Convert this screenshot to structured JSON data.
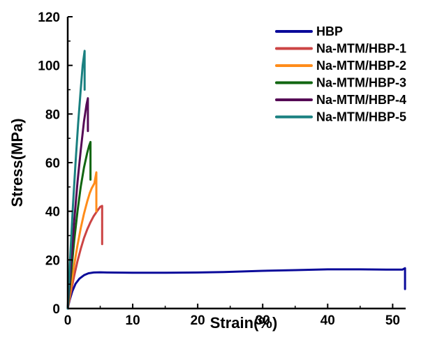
{
  "chart_data": {
    "type": "line",
    "xlabel": "Strain(%)",
    "ylabel": "Stress(MPa)",
    "xlim": [
      0,
      52
    ],
    "ylim": [
      0,
      120
    ],
    "x_ticks": [
      0,
      10,
      20,
      30,
      40,
      50
    ],
    "y_ticks": [
      0,
      20,
      40,
      60,
      80,
      100,
      120
    ],
    "grid": false,
    "legend_position": "top-right",
    "series": [
      {
        "name": "HBP",
        "color": "#0a0a9a",
        "x": [
          0,
          0.3,
          0.7,
          1.2,
          1.8,
          2.5,
          3.2,
          4.0,
          5.0,
          6.0,
          10,
          15,
          20,
          24,
          30,
          35,
          40,
          45,
          49,
          51.5,
          51.9,
          51.9,
          51.9
        ],
        "y": [
          0,
          3.5,
          7,
          10.2,
          12.3,
          13.7,
          14.5,
          14.8,
          14.9,
          14.8,
          14.7,
          14.7,
          14.8,
          15.0,
          15.5,
          15.8,
          16.1,
          16.1,
          16.0,
          16.0,
          16.6,
          13.5,
          8.0
        ]
      },
      {
        "name": "Na-MTM/HBP-1",
        "color": "#cc4444",
        "x": [
          0,
          0.5,
          1,
          1.5,
          2,
          2.5,
          3,
          3.5,
          4,
          4.5,
          5.0,
          5.3,
          5.3,
          5.3
        ],
        "y": [
          0,
          7,
          13.5,
          19.5,
          24.5,
          29,
          32.5,
          35.5,
          38,
          40,
          41.8,
          42.2,
          35,
          26.5
        ]
      },
      {
        "name": "Na-MTM/HBP-2",
        "color": "#ff8c1a",
        "x": [
          0,
          0.5,
          1,
          1.5,
          2,
          2.5,
          3,
          3.4,
          3.7,
          4.1,
          4.4,
          4.4,
          4.4
        ],
        "y": [
          0,
          9,
          18,
          26,
          33,
          39,
          44,
          47.5,
          49.5,
          51.5,
          56,
          48,
          40
        ]
      },
      {
        "name": "Na-MTM/HBP-3",
        "color": "#116611",
        "x": [
          0,
          0.5,
          1,
          1.5,
          2,
          2.5,
          3,
          3.3,
          3.5,
          3.5,
          3.5
        ],
        "y": [
          0,
          14,
          28,
          40,
          50,
          58,
          64,
          67,
          68.5,
          61,
          53
        ]
      },
      {
        "name": "Na-MTM/HBP-4",
        "color": "#550a55",
        "x": [
          0,
          0.5,
          1,
          1.5,
          2,
          2.5,
          2.9,
          3.1,
          3.1,
          3.1
        ],
        "y": [
          0,
          18,
          36,
          52,
          65,
          77,
          84,
          86.5,
          80,
          73
        ]
      },
      {
        "name": "Na-MTM/HBP-5",
        "color": "#1a8080",
        "x": [
          0,
          0.4,
          0.8,
          1.2,
          1.6,
          2.0,
          2.3,
          2.6,
          2.6,
          2.6
        ],
        "y": [
          0,
          22,
          42,
          60,
          76,
          90,
          100,
          106,
          98,
          90
        ]
      }
    ]
  }
}
